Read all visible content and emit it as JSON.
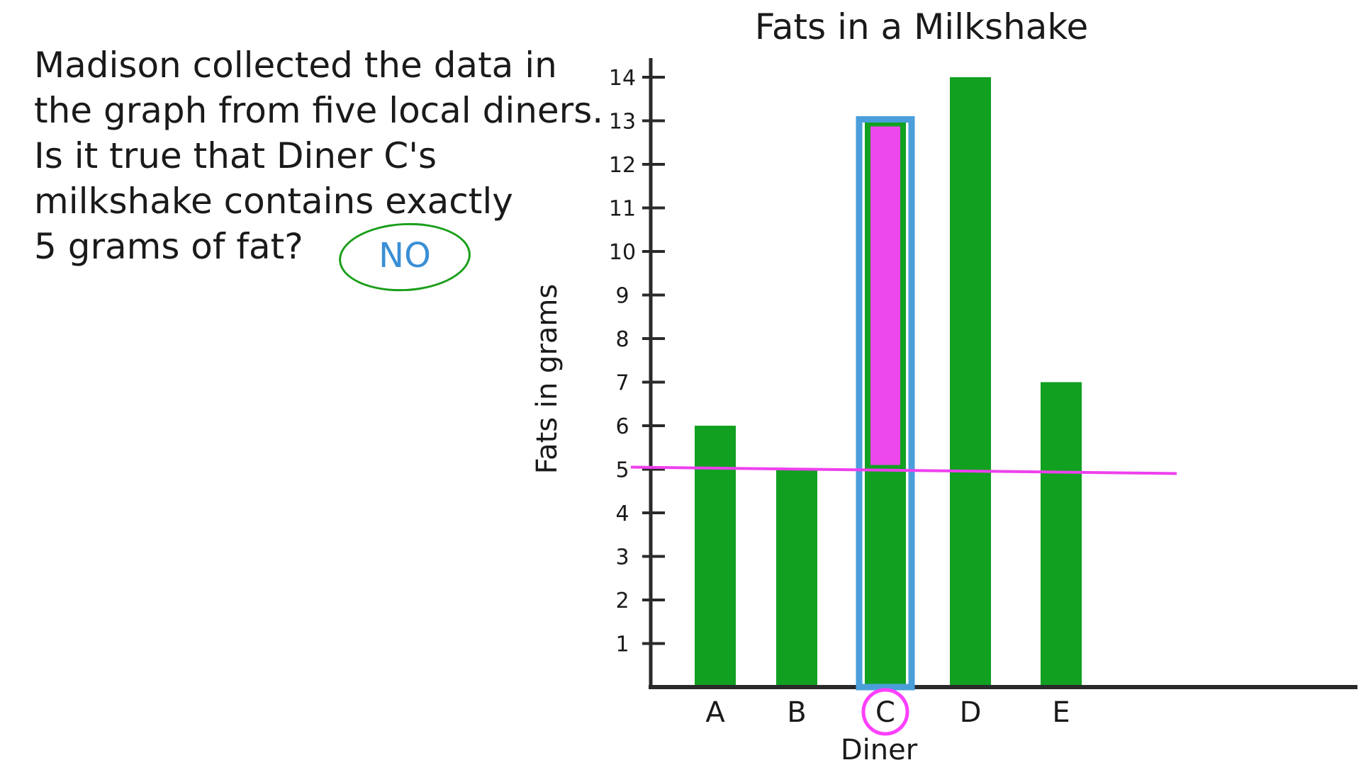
{
  "question": {
    "lines": [
      "Madison collected the data in",
      "the graph from five local diners.",
      "Is it true that Diner C's",
      "milkshake contains exactly",
      "5 grams of fat?"
    ],
    "answer": "NO"
  },
  "colors": {
    "bar": "#11a020",
    "highlight_outline": "#4a9fdb",
    "highlight_fill": "#ff40ff",
    "reference_line": "#ee40ee",
    "answer_circle": "#1a9e1a",
    "answer_text": "#3a8fd6",
    "axis": "#2a2a2a"
  },
  "chart_data": {
    "type": "bar",
    "title": "Fats in a Milkshake",
    "xlabel": "Diner",
    "ylabel": "Fats in grams",
    "categories": [
      "A",
      "B",
      "C",
      "D",
      "E"
    ],
    "values": [
      6,
      5,
      13,
      14,
      7
    ],
    "ylim": [
      0,
      14
    ],
    "yticks": [
      "1",
      "2",
      "3",
      "4",
      "5",
      "6",
      "7",
      "8",
      "9",
      "10",
      "11",
      "12",
      "13",
      "14"
    ],
    "reference_line": 5,
    "highlighted_category": "C",
    "grid": false
  }
}
